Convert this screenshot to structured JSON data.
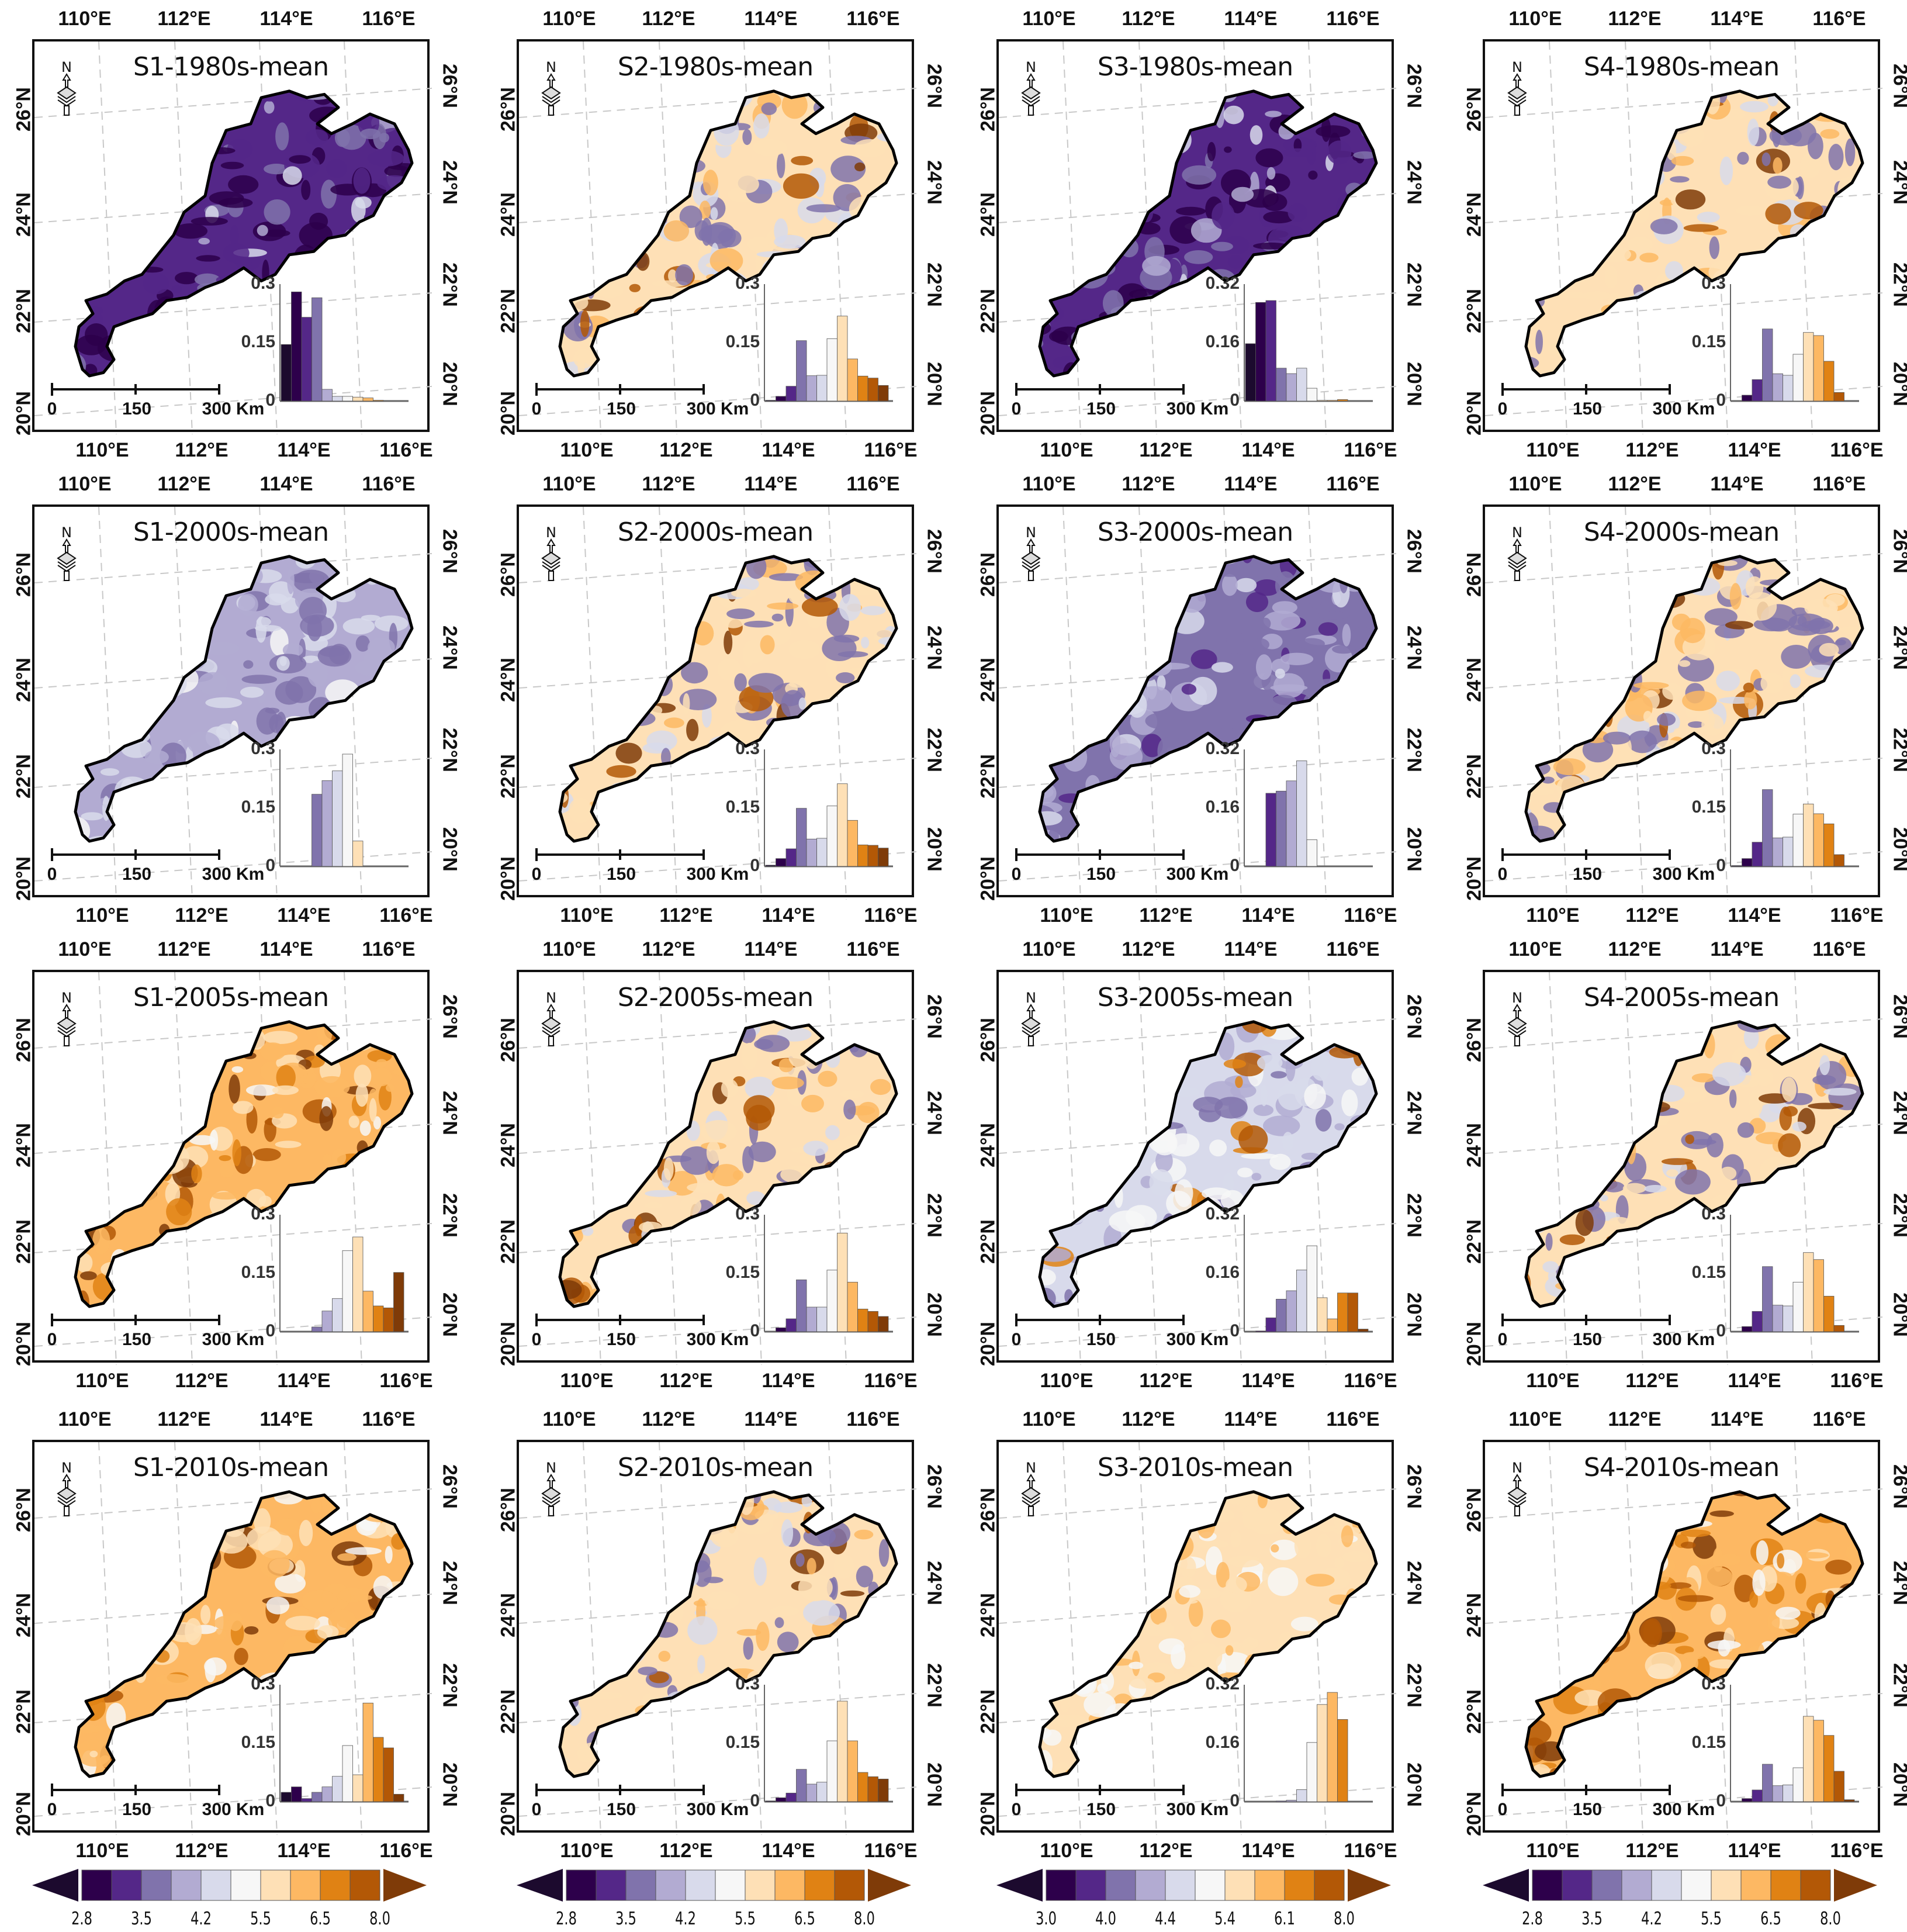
{
  "figure": {
    "lon_ticks": [
      "110°E",
      "112°E",
      "114°E",
      "116°E"
    ],
    "lat_ticks": [
      "20°N",
      "22°N",
      "24°N",
      "26°N"
    ],
    "scale_labels": [
      "0",
      "150",
      "300 Km"
    ],
    "north_label": "N",
    "palette": [
      "#1c0a2e",
      "#2d004b",
      "#542788",
      "#8073ac",
      "#b2abd2",
      "#d8daeb",
      "#f7f7f7",
      "#fee0b6",
      "#fdb863",
      "#e08214",
      "#b35806",
      "#7f3b08"
    ]
  },
  "colorbars": [
    {
      "ticks": [
        "2.8",
        "3.5",
        "4.2",
        "5.5",
        "6.5",
        "8.0"
      ]
    },
    {
      "ticks": [
        "2.8",
        "3.5",
        "4.2",
        "5.5",
        "6.5",
        "8.0"
      ]
    },
    {
      "ticks": [
        "3.0",
        "4.0",
        "4.4",
        "5.4",
        "6.1",
        "8.0"
      ]
    },
    {
      "ticks": [
        "2.8",
        "3.5",
        "4.2",
        "5.5",
        "6.5",
        "8.0"
      ]
    }
  ],
  "chart_data": [
    {
      "type": "bar",
      "title": "S1-1980s-mean",
      "ylim": [
        0,
        0.3
      ],
      "yticks": [
        "0",
        "0.15",
        "0.3"
      ],
      "values": [
        0.145,
        0.28,
        0.215,
        0.265,
        0.03,
        0.012,
        0.012,
        0.01,
        0.008,
        0.002,
        0,
        0
      ],
      "map_tone": "purple-dark"
    },
    {
      "type": "bar",
      "title": "S2-1980s-mean",
      "ylim": [
        0,
        0.3
      ],
      "yticks": [
        "0",
        "0.15",
        "0.3"
      ],
      "values": [
        0.002,
        0.012,
        0.038,
        0.155,
        0.065,
        0.066,
        0.16,
        0.218,
        0.108,
        0.064,
        0.059,
        0.04
      ],
      "map_tone": "mixed-orange"
    },
    {
      "type": "bar",
      "title": "S3-1980s-mean",
      "ylim": [
        0,
        0.32
      ],
      "yticks": [
        "0",
        "0.16",
        "0.32"
      ],
      "values": [
        0.157,
        0.27,
        0.275,
        0.09,
        0.075,
        0.09,
        0.035,
        0.002,
        0.002,
        0.004,
        0,
        0
      ],
      "map_tone": "purple-dark"
    },
    {
      "type": "bar",
      "title": "S4-1980s-mean",
      "ylim": [
        0,
        0.3
      ],
      "yticks": [
        "0",
        "0.15",
        "0.3"
      ],
      "values": [
        0,
        0.015,
        0.055,
        0.185,
        0.07,
        0.066,
        0.12,
        0.176,
        0.168,
        0.102,
        0.022,
        0
      ],
      "map_tone": "mixed-orange"
    },
    {
      "type": "bar",
      "title": "S1-2000s-mean",
      "ylim": [
        0,
        0.3
      ],
      "yticks": [
        "0",
        "0.15",
        "0.3"
      ],
      "values": [
        0,
        0,
        0,
        0.185,
        0.22,
        0.245,
        0.288,
        0.065,
        0,
        0,
        0,
        0
      ],
      "map_tone": "purple-light"
    },
    {
      "type": "bar",
      "title": "S2-2000s-mean",
      "ylim": [
        0,
        0.3
      ],
      "yticks": [
        "0",
        "0.15",
        "0.3"
      ],
      "values": [
        0.003,
        0.02,
        0.045,
        0.149,
        0.07,
        0.072,
        0.155,
        0.212,
        0.118,
        0.055,
        0.054,
        0.047
      ],
      "map_tone": "mixed-orange"
    },
    {
      "type": "bar",
      "title": "S3-2000s-mean",
      "ylim": [
        0,
        0.32
      ],
      "yticks": [
        "0",
        "0.16",
        "0.32"
      ],
      "values": [
        0,
        0,
        0.2,
        0.206,
        0.234,
        0.289,
        0.073,
        0,
        0,
        0,
        0,
        0
      ],
      "map_tone": "purple-mid"
    },
    {
      "type": "bar",
      "title": "S4-2000s-mean",
      "ylim": [
        0,
        0.3
      ],
      "yticks": [
        "0",
        "0.15",
        "0.3"
      ],
      "values": [
        0.002,
        0.02,
        0.062,
        0.197,
        0.073,
        0.075,
        0.134,
        0.16,
        0.135,
        0.109,
        0.03,
        0
      ],
      "map_tone": "mixed-orange"
    },
    {
      "type": "bar",
      "title": "S1-2005s-mean",
      "ylim": [
        0,
        0.3
      ],
      "yticks": [
        "0",
        "0.15",
        "0.3"
      ],
      "values": [
        0,
        0,
        0,
        0.012,
        0.053,
        0.085,
        0.208,
        0.243,
        0.104,
        0.066,
        0.061,
        0.152
      ],
      "map_tone": "orange-strong"
    },
    {
      "type": "bar",
      "title": "S2-2005s-mean",
      "ylim": [
        0,
        0.3
      ],
      "yticks": [
        "0",
        "0.15",
        "0.3"
      ],
      "values": [
        0,
        0.01,
        0.033,
        0.133,
        0.063,
        0.063,
        0.158,
        0.253,
        0.127,
        0.058,
        0.052,
        0.039
      ],
      "map_tone": "mixed-orange"
    },
    {
      "type": "bar",
      "title": "S3-2005s-mean",
      "ylim": [
        0,
        0.32
      ],
      "yticks": [
        "0",
        "0.16",
        "0.32"
      ],
      "values": [
        0,
        0.002,
        0.038,
        0.089,
        0.112,
        0.169,
        0.235,
        0.093,
        0.035,
        0.106,
        0.106,
        0.007
      ],
      "map_tone": "mixed-light"
    },
    {
      "type": "bar",
      "title": "S4-2005s-mean",
      "ylim": [
        0,
        0.3
      ],
      "yticks": [
        "0",
        "0.15",
        "0.3"
      ],
      "values": [
        0,
        0.013,
        0.052,
        0.167,
        0.068,
        0.066,
        0.127,
        0.203,
        0.185,
        0.091,
        0.016,
        0
      ],
      "map_tone": "mixed-orange"
    },
    {
      "type": "bar",
      "title": "S1-2010s-mean",
      "ylim": [
        0,
        0.3
      ],
      "yticks": [
        "0",
        "0.15",
        "0.3"
      ],
      "values": [
        0.024,
        0.038,
        0.008,
        0.024,
        0.038,
        0.065,
        0.144,
        0.069,
        0.253,
        0.165,
        0.138,
        0.019
      ],
      "map_tone": "orange-strong"
    },
    {
      "type": "bar",
      "title": "S2-2010s-mean",
      "ylim": [
        0,
        0.3
      ],
      "yticks": [
        "0",
        "0.15",
        "0.3"
      ],
      "values": [
        0.002,
        0.01,
        0.022,
        0.083,
        0.045,
        0.05,
        0.156,
        0.258,
        0.156,
        0.075,
        0.064,
        0.058
      ],
      "map_tone": "mixed-orange"
    },
    {
      "type": "bar",
      "title": "S3-2010s-mean",
      "ylim": [
        0,
        0.32
      ],
      "yticks": [
        "0",
        "0.16",
        "0.32"
      ],
      "values": [
        0,
        0,
        0,
        0.002,
        0.004,
        0.033,
        0.162,
        0.266,
        0.299,
        0.225,
        0,
        0
      ],
      "map_tone": "orange-light"
    },
    {
      "type": "bar",
      "title": "S4-2010s-mean",
      "ylim": [
        0,
        0.3
      ],
      "yticks": [
        "0",
        "0.15",
        "0.3"
      ],
      "values": [
        0,
        0.008,
        0.03,
        0.096,
        0.041,
        0.043,
        0.087,
        0.219,
        0.209,
        0.17,
        0.078,
        0.005
      ],
      "map_tone": "orange-strong"
    }
  ]
}
